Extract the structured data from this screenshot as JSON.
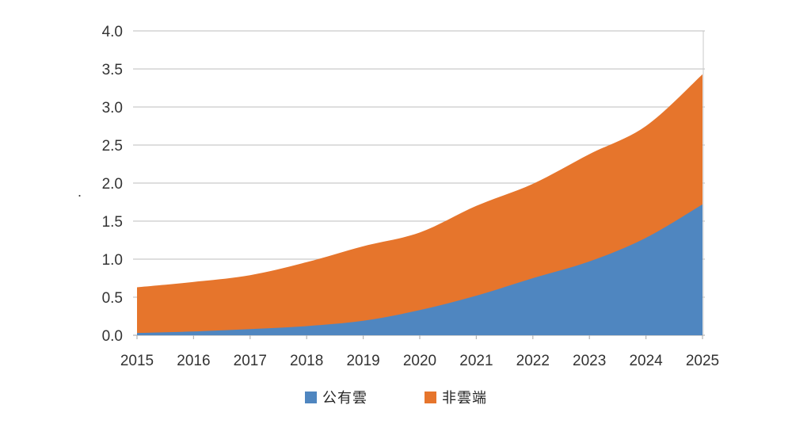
{
  "chart_data": {
    "type": "area",
    "stacked": true,
    "title": "",
    "xlabel": "",
    "ylabel": "",
    "x": [
      2015,
      2016,
      2017,
      2018,
      2019,
      2020,
      2021,
      2022,
      2023,
      2024,
      2025
    ],
    "series": [
      {
        "name": "公有雲",
        "color": "#4F86C0",
        "values": [
          0.03,
          0.05,
          0.08,
          0.12,
          0.19,
          0.33,
          0.52,
          0.75,
          0.97,
          1.28,
          1.72
        ]
      },
      {
        "name": "非雲端",
        "color": "#E6752C",
        "values": [
          0.6,
          0.65,
          0.71,
          0.84,
          0.98,
          1.02,
          1.18,
          1.24,
          1.41,
          1.47,
          1.71
        ]
      }
    ],
    "stacked_totals": [
      0.63,
      0.7,
      0.79,
      0.96,
      1.17,
      1.35,
      1.7,
      1.99,
      2.38,
      2.75,
      3.43
    ],
    "ylim": [
      0.0,
      4.0
    ],
    "ytick_step": 0.5,
    "grid": true,
    "legend_position": "bottom-center"
  },
  "axes": {
    "y_tick_labels": [
      "0.0",
      "0.5",
      "1.0",
      "1.5",
      "2.0",
      "2.5",
      "3.0",
      "3.5",
      "4.0"
    ],
    "x_tick_labels": [
      "2015",
      "2016",
      "2017",
      "2018",
      "2019",
      "2020",
      "2021",
      "2022",
      "2023",
      "2024",
      "2025"
    ]
  },
  "legend": {
    "items": [
      {
        "label": "公有雲",
        "color": "#4F86C0"
      },
      {
        "label": "非雲端",
        "color": "#E6752C"
      }
    ]
  },
  "colors": {
    "background": "#FFFFFF",
    "gridline": "#C9C9C9",
    "axis_line": "#B5B5B5",
    "right_spine": "#C9C9C9",
    "tick_label": "#333333"
  },
  "artifacts": {
    "stray_mark": "."
  }
}
